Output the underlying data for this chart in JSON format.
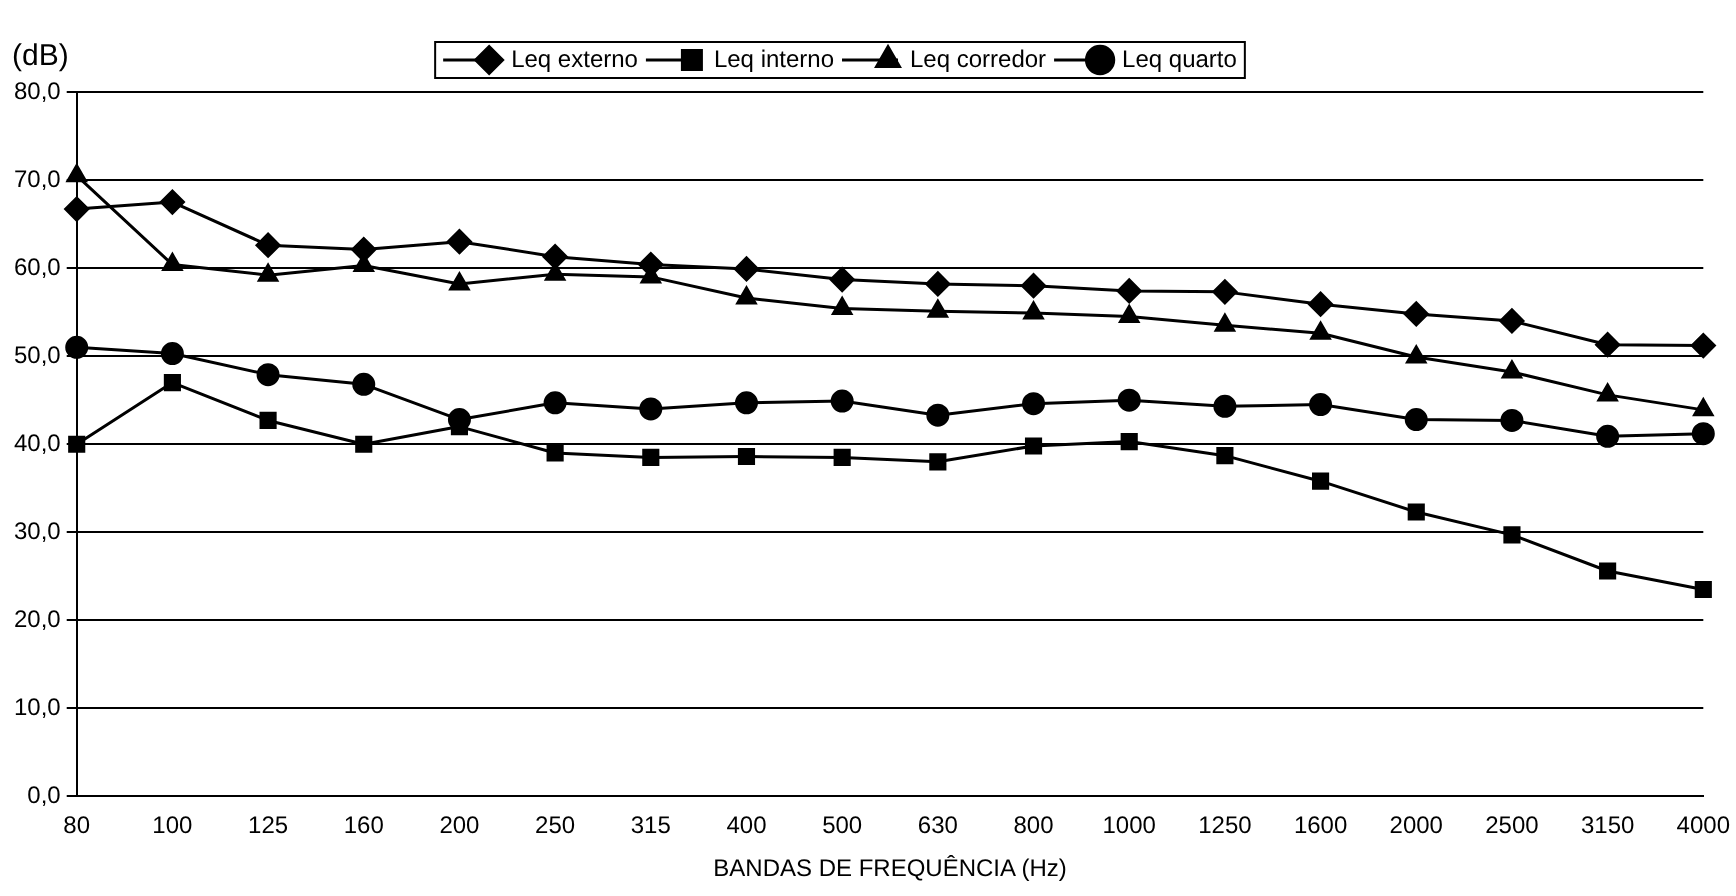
{
  "chart_data": {
    "type": "line",
    "xlabel": "BANDAS DE FREQUÊNCIA (Hz)",
    "ylabel": "(dB)",
    "categories": [
      "80",
      "100",
      "125",
      "160",
      "200",
      "250",
      "315",
      "400",
      "500",
      "630",
      "800",
      "1000",
      "1250",
      "1600",
      "2000",
      "2500",
      "3150",
      "4000"
    ],
    "series": [
      {
        "name": "Leq externo",
        "color": "#000000",
        "marker": "diamond",
        "values": [
          66.7,
          67.5,
          62.6,
          62.1,
          63.0,
          61.3,
          60.4,
          59.9,
          58.7,
          58.2,
          58.0,
          57.4,
          57.3,
          55.9,
          54.8,
          54.0,
          51.3,
          51.2
        ]
      },
      {
        "name": "Leq interno",
        "color": "#000000",
        "marker": "square",
        "values": [
          40.0,
          47.0,
          42.7,
          40.0,
          42.0,
          39.0,
          38.5,
          38.6,
          38.5,
          38.0,
          39.8,
          40.3,
          38.7,
          35.8,
          32.3,
          29.7,
          25.6,
          23.5
        ]
      },
      {
        "name": "Leq corredor",
        "color": "#000000",
        "marker": "triangle",
        "values": [
          70.5,
          60.4,
          59.2,
          60.3,
          58.2,
          59.3,
          59.0,
          56.6,
          55.4,
          55.1,
          54.9,
          54.5,
          53.5,
          52.6,
          49.9,
          48.2,
          45.6,
          43.9
        ]
      },
      {
        "name": "Leq quarto",
        "color": "#000000",
        "marker": "circle",
        "values": [
          51.0,
          50.3,
          47.9,
          46.8,
          42.8,
          44.7,
          44.0,
          44.7,
          44.9,
          43.3,
          44.6,
          45.0,
          44.3,
          44.5,
          42.8,
          42.7,
          40.9,
          41.2
        ]
      }
    ],
    "ylim": [
      0,
      80
    ],
    "yticks": [
      {
        "value": 0,
        "label": "0,0"
      },
      {
        "value": 10,
        "label": "10,0"
      },
      {
        "value": 20,
        "label": "20,0"
      },
      {
        "value": 30,
        "label": "30,0"
      },
      {
        "value": 40,
        "label": "40,0"
      },
      {
        "value": 50,
        "label": "50,0"
      },
      {
        "value": 60,
        "label": "60,0"
      },
      {
        "value": 70,
        "label": "70,0"
      },
      {
        "value": 80,
        "label": "80,0"
      }
    ],
    "grid": "y",
    "legend": "top",
    "line_style": "solid"
  }
}
